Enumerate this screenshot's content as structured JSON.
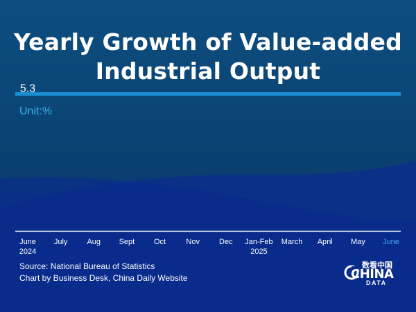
{
  "header": {
    "title_line_1": "Yearly Growth of Value-added",
    "title_line_2": "Industrial Output",
    "unit": "Unit:%"
  },
  "footer": {
    "source": "Source: National Bureau of Statistics",
    "credit": "Chart by Business Desk, China Daily Website"
  },
  "logo": {
    "chinese": "数看中国",
    "english": "CHINA",
    "sub": "DATA"
  },
  "colors": {
    "accent_rule": "#1a8fd6",
    "unit_text": "#3ab0f0",
    "highlight_tick": "#3ab0f0",
    "axis": "#ffffff"
  },
  "chart_data": {
    "type": "bar",
    "categories": [
      "June\n2024",
      "July",
      "Aug",
      "Sept",
      "Oct",
      "Nov",
      "Dec",
      "Jan-Feb\n2025",
      "March",
      "April",
      "May",
      "June"
    ],
    "values": [
      5.3,
      null,
      null,
      null,
      null,
      null,
      null,
      null,
      null,
      null,
      null,
      null
    ],
    "data_labels": [
      "5.3",
      "",
      "",
      "",
      "",
      "",
      "",
      "",
      "",
      "",
      "",
      ""
    ],
    "highlight_category_index": 11,
    "ylabel": "Unit:%",
    "ylim": [
      0,
      7
    ],
    "grid": false,
    "legend": "none"
  }
}
